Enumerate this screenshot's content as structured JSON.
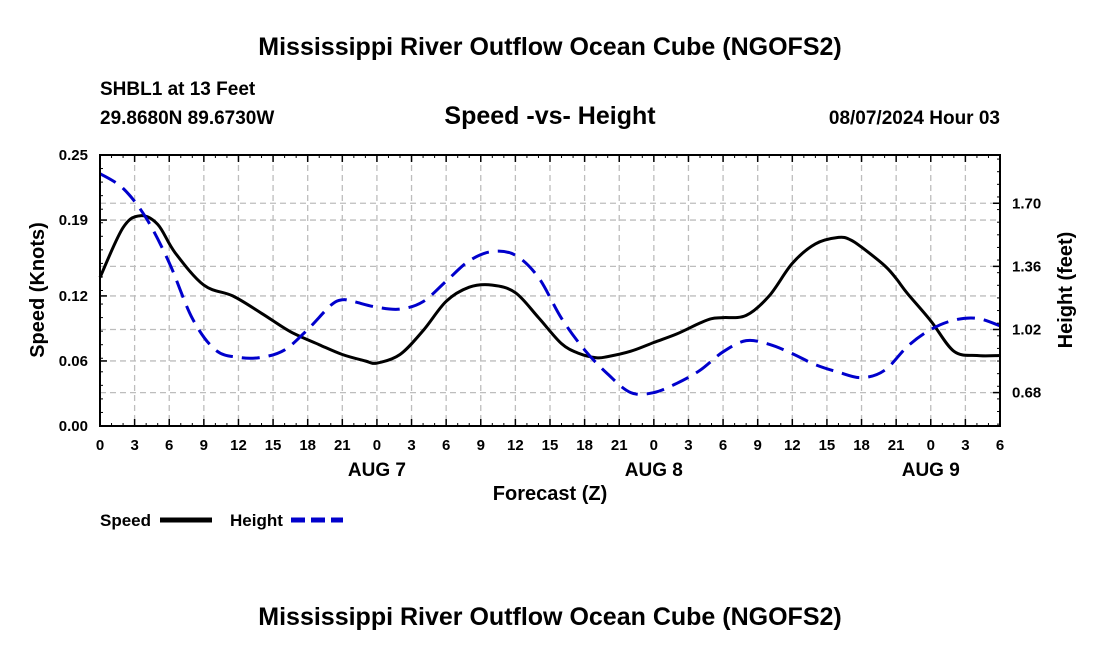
{
  "page_title": "Mississippi River Outflow Ocean Cube (NGOFS2)",
  "station": "SHBL1 at 13 Feet",
  "coords": "29.8680N  89.6730W",
  "datetime": "08/07/2024 Hour 03",
  "footer_title": "Mississippi River Outflow Ocean Cube (NGOFS2)",
  "chart_data": {
    "type": "line",
    "title": "Speed -vs- Height",
    "xlabel": "Forecast (Z)",
    "ylabel_left": "Speed (Knots)",
    "ylabel_right": "Height (feet)",
    "grid": true,
    "legend_position": "bottom-left",
    "x_unit": "hours from AUG 7 00Z",
    "xlim": [
      -24,
      54
    ],
    "x_ticks": [
      -24,
      -21,
      -18,
      -15,
      -12,
      -9,
      -6,
      -3,
      0,
      3,
      6,
      9,
      12,
      15,
      18,
      21,
      24,
      27,
      30,
      33,
      36,
      39,
      42,
      45,
      48,
      51,
      54
    ],
    "x_tick_labels": [
      "0",
      "3",
      "6",
      "9",
      "12",
      "15",
      "18",
      "21",
      "0",
      "3",
      "6",
      "9",
      "12",
      "15",
      "18",
      "21",
      "0",
      "3",
      "6",
      "9",
      "12",
      "15",
      "18",
      "21",
      "0",
      "3",
      "6"
    ],
    "date_labels": [
      {
        "x": 0,
        "text": "AUG 7"
      },
      {
        "x": 24,
        "text": "AUG 8"
      },
      {
        "x": 48,
        "text": "AUG 9"
      }
    ],
    "y_left": {
      "lim": [
        0,
        0.25
      ],
      "ticks": [
        0.0,
        0.06,
        0.12,
        0.19,
        0.25
      ],
      "tick_labels": [
        "0.00",
        "0.06",
        "0.12",
        "0.19",
        "0.25"
      ]
    },
    "y_right": {
      "lim": [
        0.5,
        1.96
      ],
      "ticks": [
        0.68,
        1.02,
        1.36,
        1.7
      ],
      "tick_labels": [
        "0.68",
        "1.02",
        "1.36",
        "1.70"
      ]
    },
    "series": [
      {
        "name": "Speed",
        "axis": "left",
        "color": "#000000",
        "dash": "solid",
        "x": [
          -24,
          -22,
          -20.5,
          -19,
          -17.5,
          -15,
          -12.5,
          -10,
          -7.5,
          -5,
          -3,
          -1,
          0,
          2,
          4,
          6,
          8,
          10,
          12,
          14,
          16,
          17.5,
          19,
          20,
          22,
          24,
          26,
          28,
          29,
          30,
          32,
          34,
          36,
          38,
          40,
          41,
          42,
          44,
          45,
          46,
          48,
          50,
          52,
          54
        ],
        "y": [
          0.137,
          0.183,
          0.194,
          0.186,
          0.16,
          0.13,
          0.12,
          0.104,
          0.087,
          0.075,
          0.066,
          0.06,
          0.058,
          0.066,
          0.088,
          0.115,
          0.128,
          0.13,
          0.123,
          0.1,
          0.076,
          0.067,
          0.063,
          0.064,
          0.069,
          0.077,
          0.085,
          0.095,
          0.099,
          0.1,
          0.102,
          0.12,
          0.15,
          0.168,
          0.174,
          0.172,
          0.165,
          0.148,
          0.136,
          0.122,
          0.097,
          0.069,
          0.065,
          0.065
        ]
      },
      {
        "name": "Height",
        "axis": "right",
        "color": "#0000cc",
        "dash": "dashed",
        "x": [
          -24,
          -22,
          -20,
          -18,
          -16,
          -14,
          -12,
          -10,
          -8,
          -6,
          -4,
          -3,
          -2,
          0,
          2,
          4,
          6,
          8,
          10,
          12,
          14,
          16,
          18,
          20,
          22,
          24,
          26,
          28,
          30,
          32,
          34,
          36,
          38,
          40,
          42,
          44,
          46,
          48,
          50,
          52,
          54
        ],
        "y": [
          1.86,
          1.78,
          1.62,
          1.38,
          1.08,
          0.91,
          0.87,
          0.87,
          0.91,
          1.02,
          1.15,
          1.18,
          1.17,
          1.14,
          1.13,
          1.17,
          1.28,
          1.39,
          1.44,
          1.42,
          1.3,
          1.08,
          0.91,
          0.78,
          0.68,
          0.68,
          0.73,
          0.8,
          0.9,
          0.96,
          0.94,
          0.89,
          0.83,
          0.79,
          0.76,
          0.8,
          0.93,
          1.02,
          1.07,
          1.08,
          1.04
        ]
      }
    ]
  }
}
